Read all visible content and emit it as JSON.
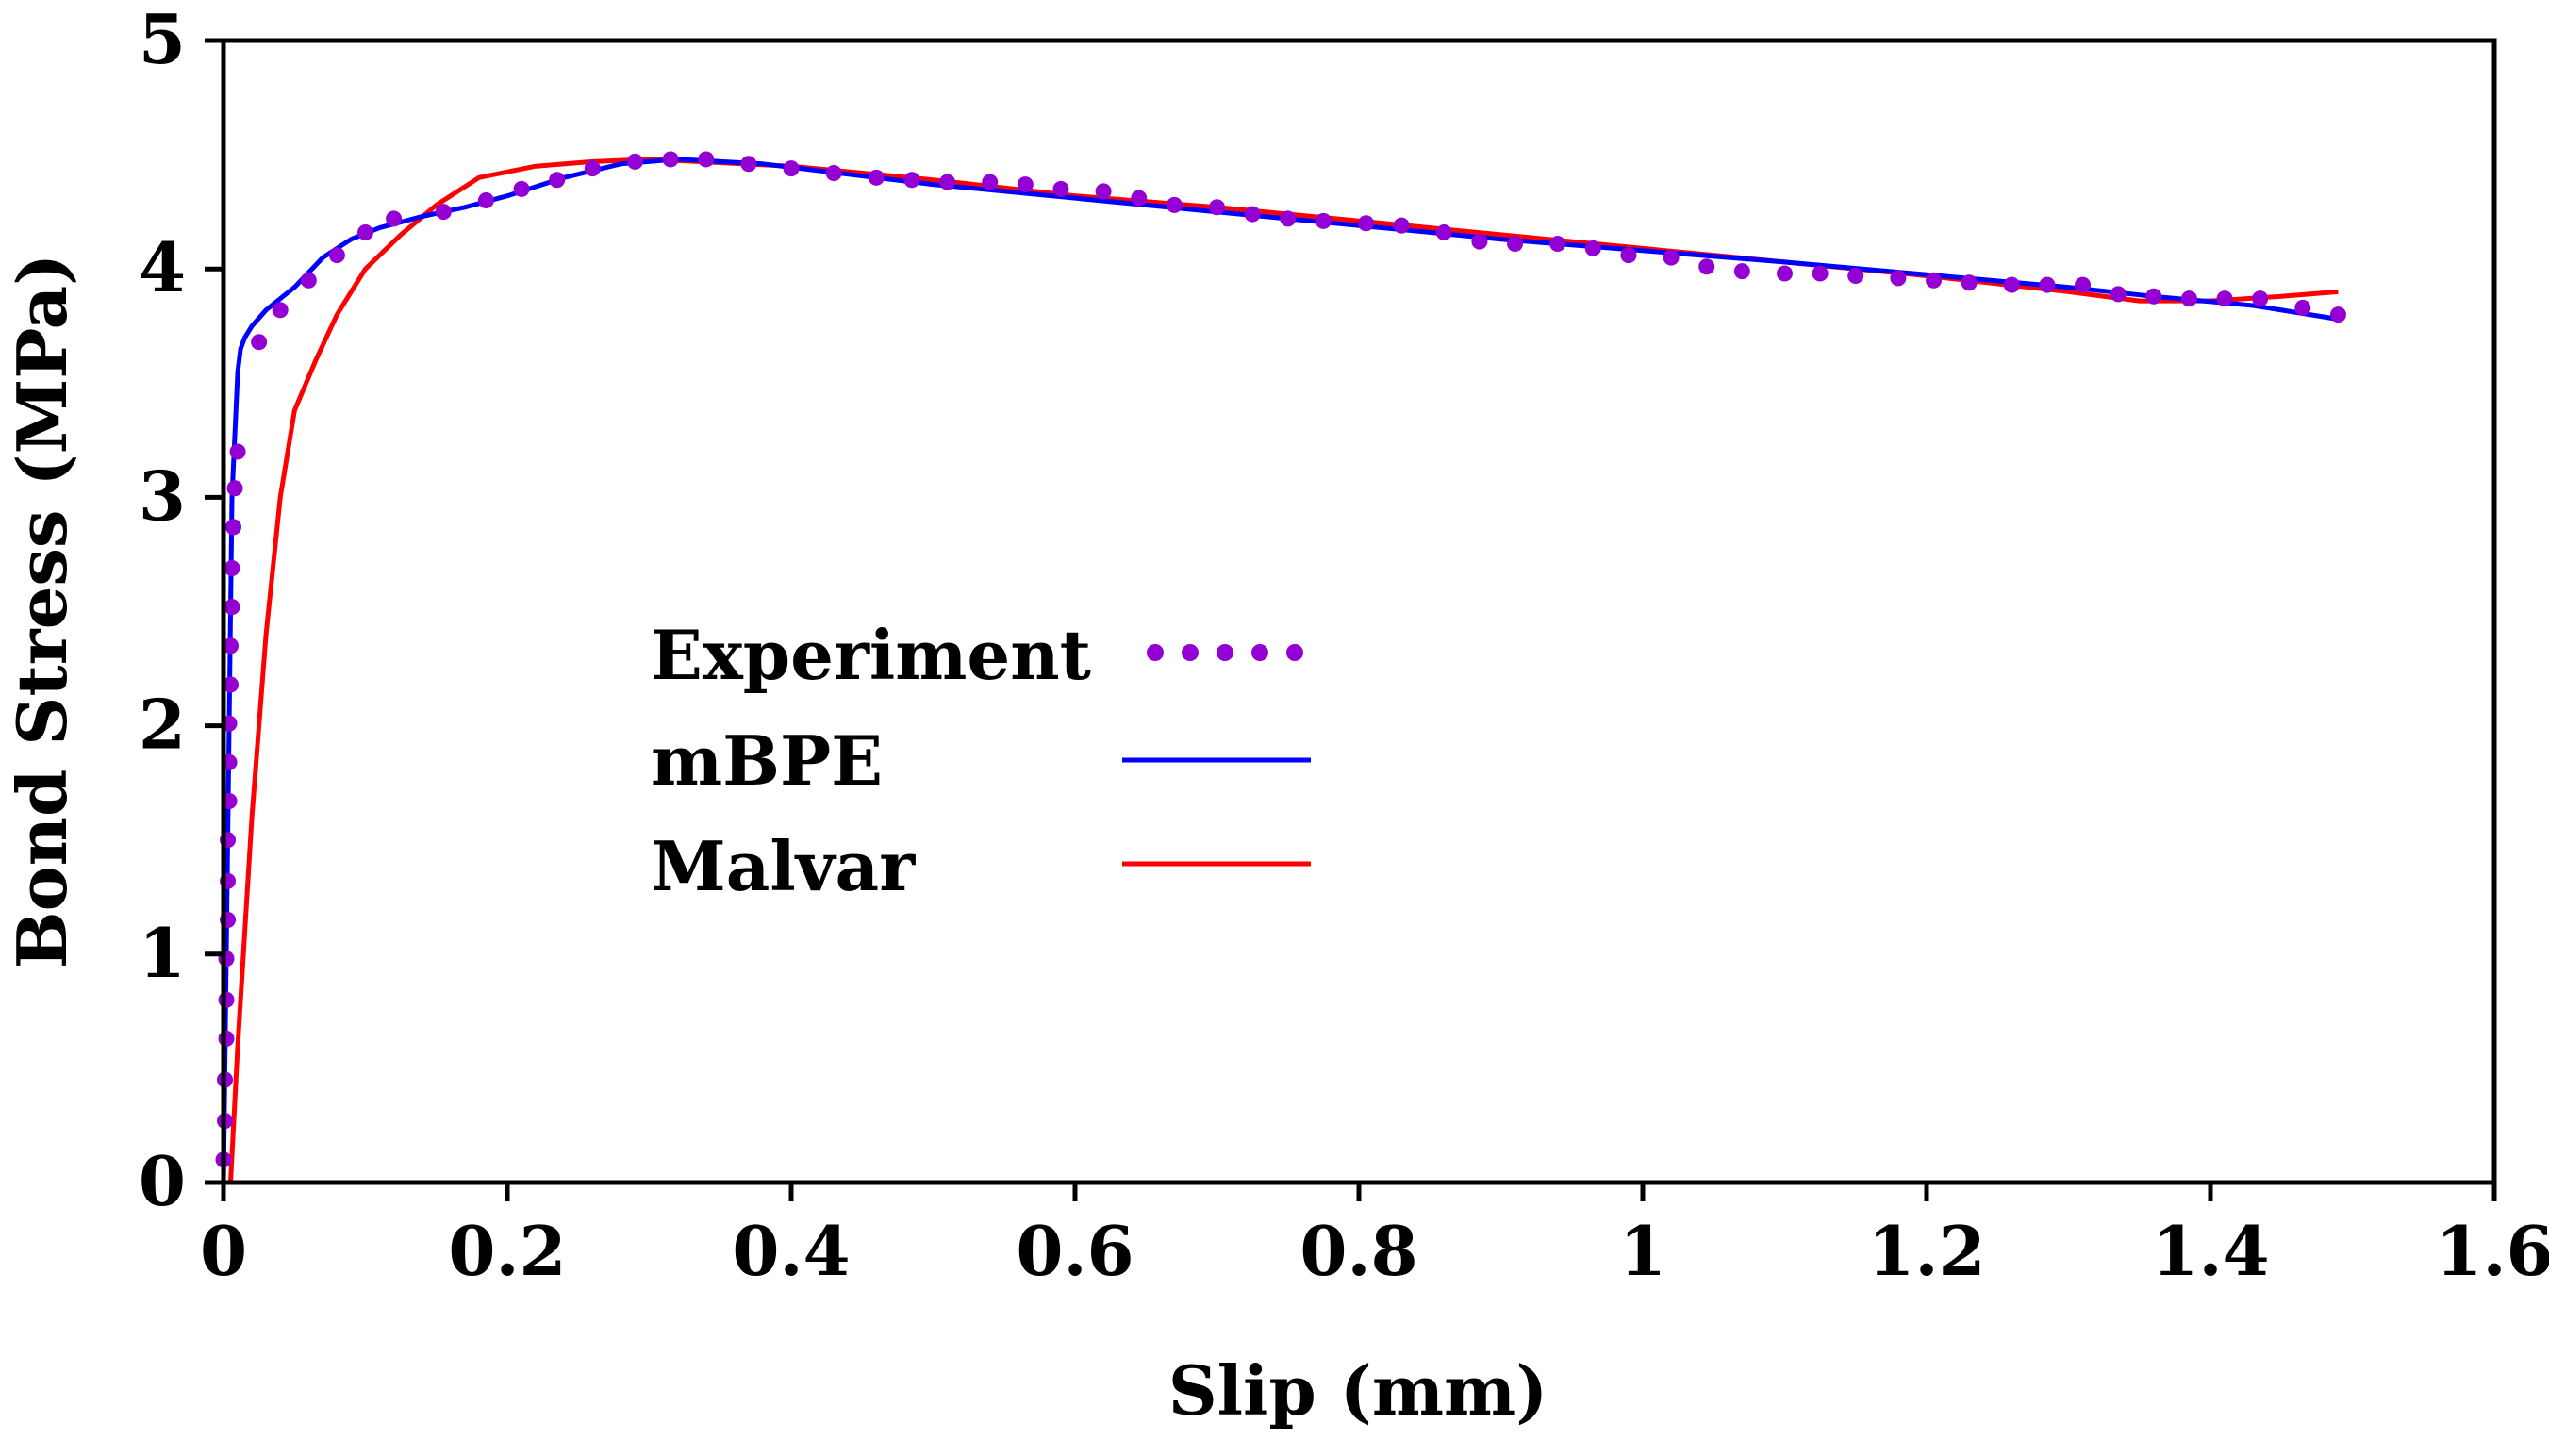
{
  "chart_data": {
    "type": "line",
    "title": "",
    "xlabel": "Slip (mm)",
    "ylabel": "Bond Stress (MPa)",
    "xlim": [
      0,
      1.6
    ],
    "ylim": [
      0,
      5
    ],
    "xticks": [
      0,
      0.2,
      0.4,
      0.6,
      0.8,
      1.0,
      1.2,
      1.4,
      1.6
    ],
    "xtick_labels": [
      "0",
      "0.2",
      "0.4",
      "0.6",
      "0.8",
      "1",
      "1.2",
      "1.4",
      "1.6"
    ],
    "yticks": [
      0,
      1,
      2,
      3,
      4,
      5
    ],
    "ytick_labels": [
      "0",
      "1",
      "2",
      "3",
      "4",
      "5"
    ],
    "grid": false,
    "legend_position": "center-left",
    "series": [
      {
        "name": "Experiment",
        "style": "dotted",
        "color": "#9400D3",
        "x": [
          0,
          0.001,
          0.001,
          0.002,
          0.002,
          0.002,
          0.003,
          0.003,
          0.003,
          0.004,
          0.004,
          0.004,
          0.005,
          0.005,
          0.006,
          0.006,
          0.007,
          0.008,
          0.01,
          0.025,
          0.04,
          0.06,
          0.08,
          0.1,
          0.12,
          0.155,
          0.185,
          0.21,
          0.235,
          0.26,
          0.29,
          0.315,
          0.34,
          0.37,
          0.4,
          0.43,
          0.46,
          0.485,
          0.51,
          0.54,
          0.565,
          0.59,
          0.62,
          0.645,
          0.67,
          0.7,
          0.725,
          0.75,
          0.775,
          0.805,
          0.83,
          0.86,
          0.885,
          0.91,
          0.94,
          0.965,
          0.99,
          1.02,
          1.045,
          1.07,
          1.1,
          1.125,
          1.15,
          1.18,
          1.205,
          1.23,
          1.26,
          1.285,
          1.31,
          1.335,
          1.36,
          1.385,
          1.41,
          1.435,
          1.465,
          1.49
        ],
        "y": [
          0.1,
          0.27,
          0.45,
          0.63,
          0.8,
          0.98,
          1.15,
          1.32,
          1.5,
          1.67,
          1.84,
          2.01,
          2.18,
          2.35,
          2.52,
          2.69,
          2.87,
          3.04,
          3.2,
          3.68,
          3.82,
          3.95,
          4.06,
          4.16,
          4.22,
          4.25,
          4.3,
          4.35,
          4.39,
          4.44,
          4.47,
          4.48,
          4.48,
          4.46,
          4.44,
          4.42,
          4.4,
          4.39,
          4.38,
          4.38,
          4.37,
          4.35,
          4.34,
          4.31,
          4.28,
          4.27,
          4.24,
          4.22,
          4.21,
          4.2,
          4.19,
          4.16,
          4.12,
          4.11,
          4.11,
          4.09,
          4.06,
          4.05,
          4.01,
          3.99,
          3.98,
          3.98,
          3.97,
          3.96,
          3.95,
          3.94,
          3.93,
          3.93,
          3.93,
          3.89,
          3.88,
          3.87,
          3.87,
          3.87,
          3.83,
          3.8
        ]
      },
      {
        "name": "mBPE",
        "style": "solid",
        "color": "#0000FF",
        "x": [
          0,
          0.003,
          0.006,
          0.01,
          0.012,
          0.015,
          0.02,
          0.03,
          0.05,
          0.07,
          0.09,
          0.11,
          0.14,
          0.17,
          0.2,
          0.24,
          0.28,
          0.32,
          0.38,
          0.5,
          0.7,
          0.9,
          1.1,
          1.3,
          1.36,
          1.43,
          1.49
        ],
        "y": [
          0,
          1.5,
          3.0,
          3.55,
          3.65,
          3.7,
          3.75,
          3.82,
          3.92,
          4.05,
          4.13,
          4.18,
          4.23,
          4.27,
          4.32,
          4.4,
          4.46,
          4.48,
          4.46,
          4.37,
          4.25,
          4.13,
          4.03,
          3.92,
          3.88,
          3.84,
          3.78
        ]
      },
      {
        "name": "Malvar",
        "style": "solid",
        "color": "#FF0000",
        "x": [
          0.005,
          0.01,
          0.02,
          0.03,
          0.04,
          0.05,
          0.065,
          0.08,
          0.1,
          0.125,
          0.15,
          0.18,
          0.22,
          0.26,
          0.3,
          0.4,
          0.5,
          0.6,
          0.7,
          0.8,
          0.9,
          1.0,
          1.1,
          1.2,
          1.3,
          1.35,
          1.4,
          1.45,
          1.49
        ],
        "y": [
          0,
          0.6,
          1.6,
          2.4,
          3.0,
          3.38,
          3.6,
          3.8,
          4.0,
          4.15,
          4.28,
          4.4,
          4.45,
          4.47,
          4.48,
          4.45,
          4.39,
          4.32,
          4.27,
          4.21,
          4.15,
          4.09,
          4.03,
          3.97,
          3.9,
          3.86,
          3.86,
          3.88,
          3.9
        ]
      }
    ]
  }
}
